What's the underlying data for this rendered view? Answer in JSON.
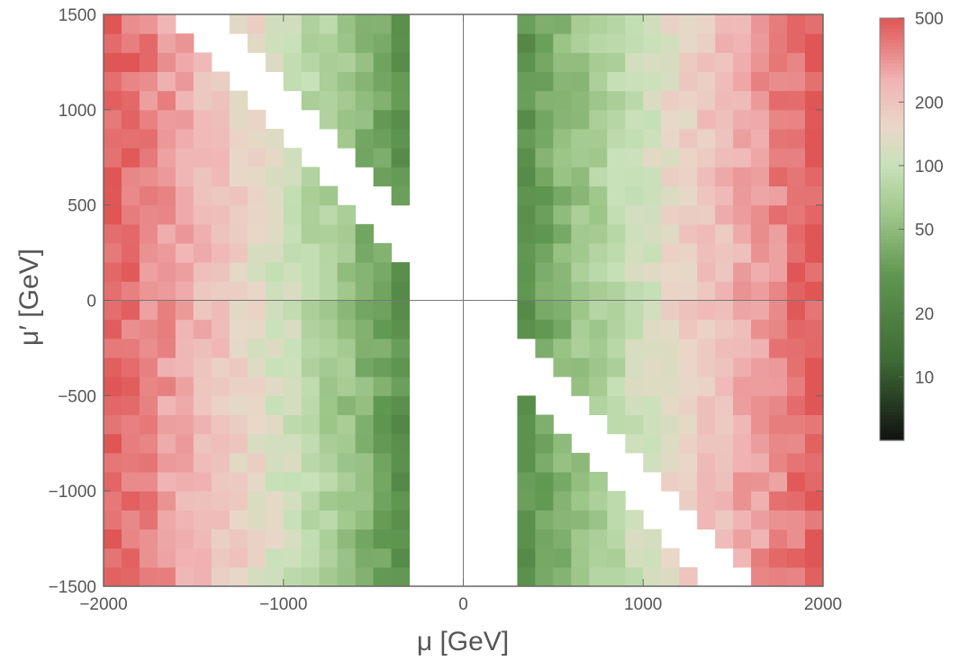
{
  "chart_data": {
    "type": "heatmap",
    "title": "",
    "xlabel": "μ [GeV]",
    "ylabel": "μ′ [GeV]",
    "xlim": [
      -2000,
      2000
    ],
    "ylim": [
      -1500,
      1500
    ],
    "x_ticks": [
      "−2000",
      "−1000",
      "0",
      "1000",
      "2000"
    ],
    "x_tick_values": [
      -2000,
      -1000,
      0,
      1000,
      2000
    ],
    "y_ticks": [
      "1500",
      "1000",
      "500",
      "0",
      "−500",
      "−1000",
      "−1500"
    ],
    "y_tick_values": [
      1500,
      1000,
      500,
      0,
      -500,
      -1000,
      -1500
    ],
    "grid": false,
    "bin_width": 100,
    "bin_height": 100,
    "colorbar": {
      "scale": "log",
      "range": [
        5,
        500
      ],
      "ticks": [
        "500",
        "200",
        "100",
        "50",
        "20",
        "10"
      ],
      "tick_values": [
        500,
        200,
        100,
        50,
        20,
        10
      ],
      "colors": [
        "#111111",
        "#3f6b35",
        "#8fbf78",
        "#c2dfb2",
        "#e9d7c8",
        "#f0b5b5",
        "#e05555"
      ]
    },
    "value_description": "Value is approximately symmetric in mu; grows from ~15-40 near |mu|=300-500 GeV to ~500 at |mu|=2000 GeV. White regions are excluded: |mu|<300 GeV band and diagonal strip around mu = -mu' (upper-left and lower-right).",
    "min_abs_mu_allowed": 300,
    "excluded_diagonal": "mu + mu' ≈ 0"
  }
}
